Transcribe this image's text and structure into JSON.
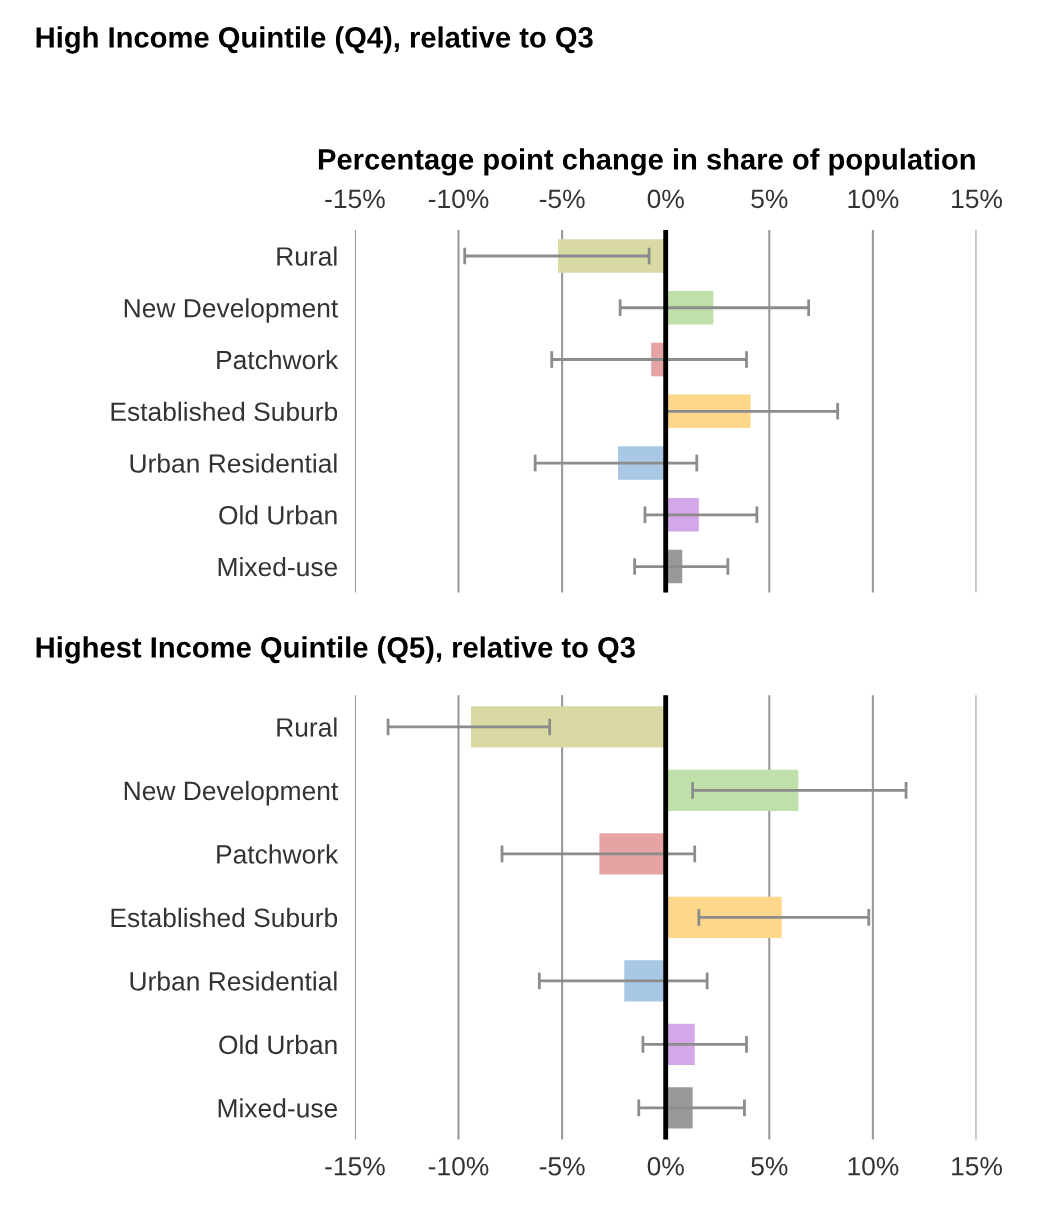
{
  "chart_data": [
    {
      "type": "bar",
      "orientation": "horizontal",
      "title": "High Income Quintile (Q4), relative to Q3",
      "xlabel": "Percentage point change in share of population",
      "categories": [
        "Rural",
        "New Development",
        "Patchwork",
        "Established Suburb",
        "Urban Residential",
        "Old Urban",
        "Mixed-use"
      ],
      "values": [
        -5.2,
        2.3,
        -0.7,
        4.1,
        -2.3,
        1.6,
        0.8
      ],
      "errors": [
        [
          -9.7,
          -0.8
        ],
        [
          -2.2,
          6.9
        ],
        [
          -5.5,
          3.9
        ],
        [
          0.0,
          8.3
        ],
        [
          -6.3,
          1.5
        ],
        [
          -1.0,
          4.4
        ],
        [
          -1.5,
          3.0
        ]
      ],
      "colors": [
        "#d9d9a3",
        "#bfe0a8",
        "#e6a3a3",
        "#fdd88a",
        "#a9c8e6",
        "#d4a8e8",
        "#999999"
      ],
      "xlim": [
        -15,
        15
      ],
      "xticks": [
        {
          "value": -15,
          "label": "-15%"
        },
        {
          "value": -10,
          "label": "-10%"
        },
        {
          "value": -5,
          "label": "-5%"
        },
        {
          "value": 0,
          "label": "0%"
        },
        {
          "value": 5,
          "label": "5%"
        },
        {
          "value": 10,
          "label": "10%"
        },
        {
          "value": 15,
          "label": "15%"
        }
      ],
      "grid": "x",
      "ref_lines": [
        {
          "axis": "x",
          "value": 0,
          "color": "#000000"
        }
      ]
    },
    {
      "type": "bar",
      "orientation": "horizontal",
      "title": "Highest Income Quintile (Q5), relative to Q3",
      "categories": [
        "Rural",
        "New Development",
        "Patchwork",
        "Established Suburb",
        "Urban Residential",
        "Old Urban",
        "Mixed-use"
      ],
      "values": [
        -9.4,
        6.4,
        -3.2,
        5.6,
        -2.0,
        1.4,
        1.3
      ],
      "errors": [
        [
          -13.4,
          -5.6
        ],
        [
          1.3,
          11.6
        ],
        [
          -7.9,
          1.4
        ],
        [
          1.6,
          9.8
        ],
        [
          -6.1,
          2.0
        ],
        [
          -1.1,
          3.9
        ],
        [
          -1.3,
          3.8
        ]
      ],
      "colors": [
        "#d9d9a3",
        "#bfe0a8",
        "#e6a3a3",
        "#fdd88a",
        "#a9c8e6",
        "#d4a8e8",
        "#999999"
      ],
      "xlim": [
        -15,
        15
      ],
      "xticks": [
        {
          "value": -15,
          "label": "-15%"
        },
        {
          "value": -10,
          "label": "-10%"
        },
        {
          "value": -5,
          "label": "-5%"
        },
        {
          "value": 0,
          "label": "0%"
        },
        {
          "value": 5,
          "label": "5%"
        },
        {
          "value": 10,
          "label": "10%"
        },
        {
          "value": 15,
          "label": "15%"
        }
      ],
      "grid": "x",
      "ref_lines": [
        {
          "axis": "x",
          "value": 0,
          "color": "#000000"
        }
      ]
    }
  ]
}
